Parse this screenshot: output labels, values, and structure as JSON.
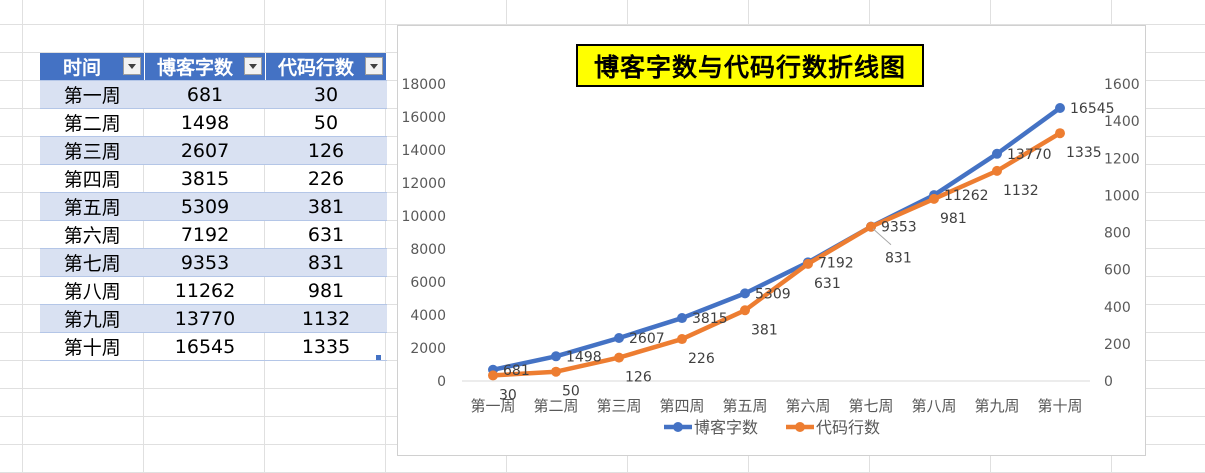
{
  "table": {
    "headers": [
      "时间",
      "博客字数",
      "代码行数"
    ],
    "rows": [
      [
        "第一周",
        "681",
        "30"
      ],
      [
        "第二周",
        "1498",
        "50"
      ],
      [
        "第三周",
        "2607",
        "126"
      ],
      [
        "第四周",
        "3815",
        "226"
      ],
      [
        "第五周",
        "5309",
        "381"
      ],
      [
        "第六周",
        "7192",
        "631"
      ],
      [
        "第七周",
        "9353",
        "831"
      ],
      [
        "第八周",
        "11262",
        "981"
      ],
      [
        "第九周",
        "13770",
        "1132"
      ],
      [
        "第十周",
        "16545",
        "1335"
      ]
    ]
  },
  "chart_data": {
    "type": "line",
    "title": "博客字数与代码行数折线图",
    "categories": [
      "第一周",
      "第二周",
      "第三周",
      "第四周",
      "第五周",
      "第六周",
      "第七周",
      "第八周",
      "第九周",
      "第十周"
    ],
    "series": [
      {
        "name": "博客字数",
        "axis": "left",
        "color": "#4472c4",
        "values": [
          681,
          1498,
          2607,
          3815,
          5309,
          7192,
          9353,
          11262,
          13770,
          16545
        ]
      },
      {
        "name": "代码行数",
        "axis": "right",
        "color": "#ed7d31",
        "values": [
          30,
          50,
          126,
          226,
          381,
          631,
          831,
          981,
          1132,
          1335
        ]
      }
    ],
    "ylim_left": [
      0,
      18000
    ],
    "yticks_left": [
      "0",
      "2000",
      "4000",
      "6000",
      "8000",
      "10000",
      "12000",
      "14000",
      "16000",
      "18000"
    ],
    "ylim_right": [
      0,
      1600
    ],
    "yticks_right": [
      "0",
      "200",
      "400",
      "600",
      "800",
      "1000",
      "1200",
      "1400",
      "1600"
    ],
    "grid": false,
    "data_labels": true,
    "legend_position": "bottom"
  }
}
